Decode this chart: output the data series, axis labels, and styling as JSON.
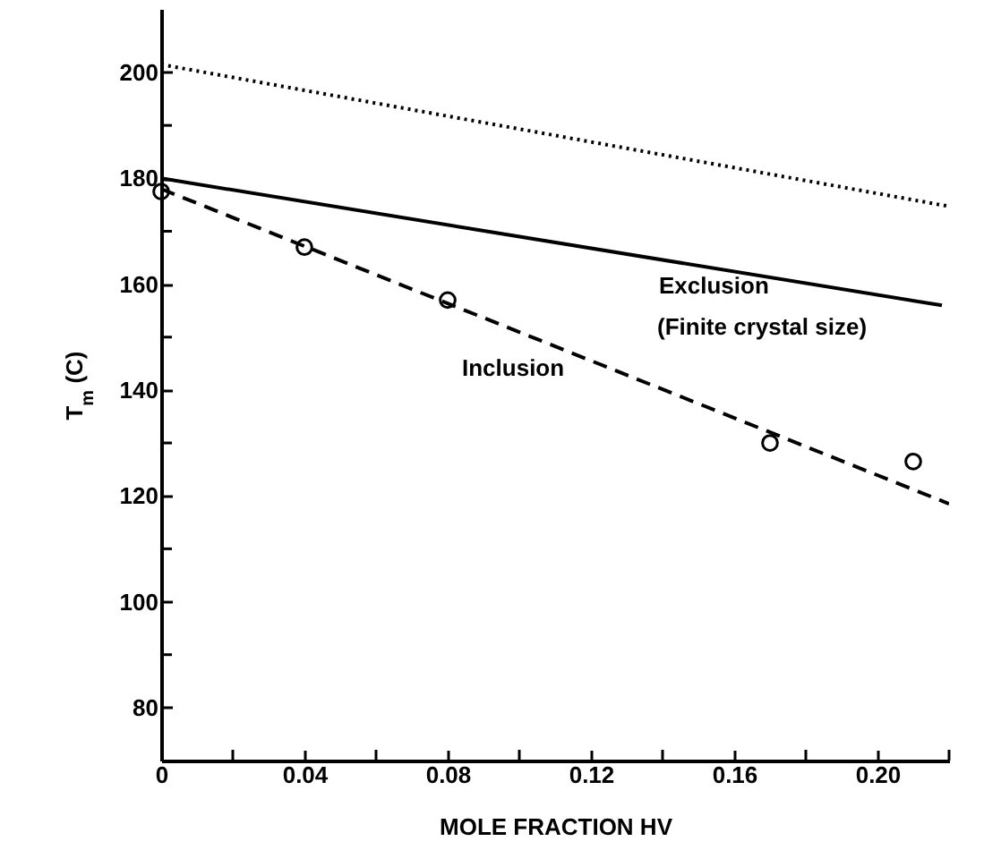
{
  "chart_data": {
    "type": "line",
    "xlabel": "MOLE FRACTION HV",
    "ylabel": "T$_{m}$ (C)",
    "xlim": [
      0,
      0.22
    ],
    "ylim": [
      70,
      212
    ],
    "xticks": [
      0,
      {
        "value": 0.02,
        "label": null
      },
      0.04,
      {
        "value": 0.06,
        "label": null
      },
      0.08,
      {
        "value": 0.1,
        "label": null
      },
      0.12,
      {
        "value": 0.14,
        "label": null
      },
      0.16,
      {
        "value": 0.18,
        "label": null
      },
      {
        "value": 0.2,
        "label": "0.20"
      },
      {
        "value": 0.22,
        "label": null
      }
    ],
    "yticks": [
      80,
      {
        "value": 90,
        "label": null
      },
      100,
      {
        "value": 110,
        "label": null
      },
      120,
      {
        "value": 130,
        "label": null
      },
      140,
      {
        "value": 150,
        "label": null
      },
      160,
      {
        "value": 170,
        "label": null
      },
      180,
      {
        "value": 190,
        "label": null
      },
      200
    ],
    "grid": false,
    "series": [
      {
        "type": "line",
        "line_style": "dotted",
        "color": "#000000",
        "x": [
          0,
          0.22
        ],
        "values": [
          201.5,
          174.7
        ]
      },
      {
        "type": "line",
        "line_style": "solid",
        "color": "#000000",
        "x": [
          0,
          0.218
        ],
        "values": [
          180,
          156
        ]
      },
      {
        "type": "line",
        "line_style": "dashed",
        "color": "#000000",
        "x": [
          0,
          0.22
        ],
        "values": [
          178,
          118.5
        ]
      },
      {
        "type": "scatter",
        "marker": "circle",
        "color": "#000000",
        "x": [
          0,
          0.04,
          0.08,
          0.17,
          0.21
        ],
        "values": [
          177.5,
          167,
          157,
          130,
          126.5
        ]
      }
    ],
    "annotations": [
      "Exclusion",
      "(Finite crystal size)",
      "Inclusion"
    ]
  }
}
